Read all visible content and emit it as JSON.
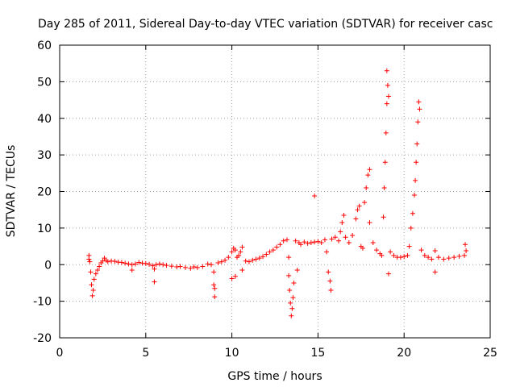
{
  "chart_data": {
    "type": "scatter",
    "title": "Day 285 of 2011, Sidereal Day-to-day VTEC variation (SDTVAR) for receiver casc",
    "xlabel": "GPS time / hours",
    "ylabel": "SDTVAR / TECUs",
    "xlim": [
      0,
      25
    ],
    "ylim": [
      -20,
      60
    ],
    "xticks": [
      0,
      5,
      10,
      15,
      20,
      25
    ],
    "yticks": [
      -20,
      -10,
      0,
      10,
      20,
      30,
      40,
      50,
      60
    ],
    "grid": true,
    "marker": "+",
    "series_color": "#ff0000",
    "series": [
      {
        "name": "SDTVAR",
        "points": [
          [
            1.7,
            2.5
          ],
          [
            1.7,
            1.5
          ],
          [
            1.75,
            0.8
          ],
          [
            1.8,
            -2.0
          ],
          [
            1.85,
            -5.5
          ],
          [
            1.9,
            -8.5
          ],
          [
            1.95,
            -7.0
          ],
          [
            2.0,
            -4.0
          ],
          [
            2.1,
            -2.5
          ],
          [
            2.2,
            -1.5
          ],
          [
            2.3,
            -0.5
          ],
          [
            2.4,
            0.5
          ],
          [
            2.5,
            1.0
          ],
          [
            2.6,
            1.8
          ],
          [
            2.7,
            1.2
          ],
          [
            2.8,
            0.8
          ],
          [
            3.0,
            1.0
          ],
          [
            3.2,
            0.9
          ],
          [
            3.4,
            0.7
          ],
          [
            3.6,
            0.6
          ],
          [
            3.8,
            0.4
          ],
          [
            4.0,
            0.2
          ],
          [
            4.2,
            0.0
          ],
          [
            4.2,
            -1.5
          ],
          [
            4.4,
            0.2
          ],
          [
            4.6,
            0.6
          ],
          [
            4.8,
            0.4
          ],
          [
            5.0,
            0.3
          ],
          [
            5.2,
            0.1
          ],
          [
            5.4,
            -0.3
          ],
          [
            5.5,
            -1.2
          ],
          [
            5.5,
            -4.7
          ],
          [
            5.6,
            0.0
          ],
          [
            5.8,
            0.2
          ],
          [
            6.0,
            0.0
          ],
          [
            6.2,
            -0.2
          ],
          [
            6.5,
            -0.4
          ],
          [
            6.8,
            -0.6
          ],
          [
            7.0,
            -0.5
          ],
          [
            7.3,
            -0.8
          ],
          [
            7.6,
            -1.0
          ],
          [
            7.8,
            -0.6
          ],
          [
            8.0,
            -0.8
          ],
          [
            8.3,
            -0.5
          ],
          [
            8.6,
            0.2
          ],
          [
            8.8,
            0.0
          ],
          [
            8.95,
            -2.0
          ],
          [
            8.95,
            -5.5
          ],
          [
            9.0,
            -6.5
          ],
          [
            9.0,
            -8.8
          ],
          [
            9.2,
            0.5
          ],
          [
            9.4,
            0.8
          ],
          [
            9.6,
            1.2
          ],
          [
            9.8,
            2.0
          ],
          [
            10.0,
            3.5
          ],
          [
            10.0,
            -3.8
          ],
          [
            10.1,
            4.5
          ],
          [
            10.2,
            4.0
          ],
          [
            10.2,
            -3.2
          ],
          [
            10.3,
            2.0
          ],
          [
            10.4,
            2.5
          ],
          [
            10.5,
            3.5
          ],
          [
            10.6,
            4.8
          ],
          [
            10.6,
            -1.5
          ],
          [
            10.8,
            1.0
          ],
          [
            11.0,
            0.8
          ],
          [
            11.2,
            1.2
          ],
          [
            11.4,
            1.5
          ],
          [
            11.6,
            1.8
          ],
          [
            11.8,
            2.2
          ],
          [
            12.0,
            2.8
          ],
          [
            12.2,
            3.5
          ],
          [
            12.4,
            4.0
          ],
          [
            12.6,
            4.8
          ],
          [
            12.8,
            5.5
          ],
          [
            13.0,
            6.5
          ],
          [
            13.2,
            6.8
          ],
          [
            13.3,
            2.0
          ],
          [
            13.3,
            -3.0
          ],
          [
            13.35,
            -7.0
          ],
          [
            13.4,
            -10.5
          ],
          [
            13.45,
            -14.0
          ],
          [
            13.5,
            -12.0
          ],
          [
            13.55,
            -9.0
          ],
          [
            13.6,
            -5.0
          ],
          [
            13.7,
            6.5
          ],
          [
            13.8,
            -1.5
          ],
          [
            13.9,
            6.0
          ],
          [
            14.0,
            5.5
          ],
          [
            14.2,
            6.2
          ],
          [
            14.4,
            5.8
          ],
          [
            14.6,
            6.0
          ],
          [
            14.8,
            6.2
          ],
          [
            14.8,
            18.8
          ],
          [
            15.0,
            6.3
          ],
          [
            15.2,
            6.0
          ],
          [
            15.4,
            6.8
          ],
          [
            15.5,
            3.5
          ],
          [
            15.6,
            -2.0
          ],
          [
            15.7,
            -4.5
          ],
          [
            15.75,
            -7.0
          ],
          [
            15.8,
            7.0
          ],
          [
            16.0,
            7.5
          ],
          [
            16.2,
            6.5
          ],
          [
            16.3,
            9.0
          ],
          [
            16.4,
            11.5
          ],
          [
            16.5,
            13.5
          ],
          [
            16.6,
            7.5
          ],
          [
            16.8,
            6.0
          ],
          [
            17.0,
            8.0
          ],
          [
            17.2,
            12.5
          ],
          [
            17.3,
            15.0
          ],
          [
            17.4,
            16.0
          ],
          [
            17.5,
            5.0
          ],
          [
            17.6,
            4.5
          ],
          [
            17.7,
            17.0
          ],
          [
            17.8,
            21.0
          ],
          [
            17.9,
            24.5
          ],
          [
            18.0,
            26.0
          ],
          [
            18.0,
            11.5
          ],
          [
            18.2,
            6.0
          ],
          [
            18.4,
            4.0
          ],
          [
            18.6,
            3.0
          ],
          [
            18.7,
            2.5
          ],
          [
            18.8,
            13.0
          ],
          [
            18.85,
            21.0
          ],
          [
            18.9,
            28.0
          ],
          [
            18.95,
            36.0
          ],
          [
            19.0,
            44.0
          ],
          [
            19.0,
            53.0
          ],
          [
            19.05,
            49.0
          ],
          [
            19.1,
            46.0
          ],
          [
            19.1,
            -2.5
          ],
          [
            19.2,
            3.5
          ],
          [
            19.4,
            2.5
          ],
          [
            19.6,
            2.0
          ],
          [
            19.8,
            2.0
          ],
          [
            20.0,
            2.2
          ],
          [
            20.2,
            2.5
          ],
          [
            20.3,
            5.0
          ],
          [
            20.4,
            10.0
          ],
          [
            20.5,
            14.0
          ],
          [
            20.6,
            19.0
          ],
          [
            20.65,
            23.0
          ],
          [
            20.7,
            28.0
          ],
          [
            20.75,
            33.0
          ],
          [
            20.8,
            39.0
          ],
          [
            20.85,
            44.5
          ],
          [
            20.9,
            42.5
          ],
          [
            21.0,
            4.0
          ],
          [
            21.2,
            2.5
          ],
          [
            21.4,
            2.0
          ],
          [
            21.6,
            1.5
          ],
          [
            21.8,
            -2.0
          ],
          [
            21.8,
            3.8
          ],
          [
            22.0,
            2.0
          ],
          [
            22.3,
            1.5
          ],
          [
            22.6,
            1.8
          ],
          [
            22.9,
            2.0
          ],
          [
            23.2,
            2.3
          ],
          [
            23.5,
            2.5
          ],
          [
            23.55,
            5.5
          ],
          [
            23.6,
            3.8
          ]
        ]
      }
    ]
  }
}
